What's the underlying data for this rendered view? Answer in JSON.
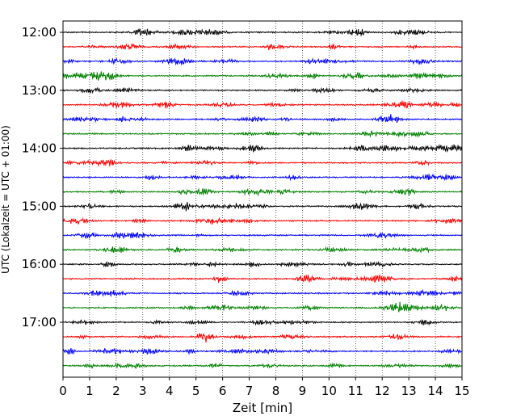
{
  "chart_data": {
    "type": "line",
    "title": "",
    "xlabel": "Zeit  [min]",
    "ylabel": "UTC (Lokalzeit = UTC + 01:00)",
    "xlim": [
      0,
      15
    ],
    "x_ticks": [
      "0",
      "1",
      "2",
      "3",
      "4",
      "5",
      "6",
      "7",
      "8",
      "9",
      "10",
      "11",
      "12",
      "13",
      "14",
      "15"
    ],
    "y_ticks": [
      "12:00",
      "13:00",
      "14:00",
      "15:00",
      "16:00",
      "17:00"
    ],
    "grid": "vertical dotted",
    "trace_colors": [
      "#000000",
      "#ff0000",
      "#0000ff",
      "#008000"
    ],
    "traces": [
      {
        "start": "12:00",
        "color": "#000000"
      },
      {
        "start": "12:15",
        "color": "#ff0000"
      },
      {
        "start": "12:30",
        "color": "#0000ff"
      },
      {
        "start": "12:45",
        "color": "#008000"
      },
      {
        "start": "13:00",
        "color": "#000000"
      },
      {
        "start": "13:15",
        "color": "#ff0000"
      },
      {
        "start": "13:30",
        "color": "#0000ff"
      },
      {
        "start": "13:45",
        "color": "#008000"
      },
      {
        "start": "14:00",
        "color": "#000000"
      },
      {
        "start": "14:15",
        "color": "#ff0000"
      },
      {
        "start": "14:30",
        "color": "#0000ff"
      },
      {
        "start": "14:45",
        "color": "#008000"
      },
      {
        "start": "15:00",
        "color": "#000000"
      },
      {
        "start": "15:15",
        "color": "#ff0000"
      },
      {
        "start": "15:30",
        "color": "#0000ff"
      },
      {
        "start": "15:45",
        "color": "#008000"
      },
      {
        "start": "16:00",
        "color": "#000000"
      },
      {
        "start": "16:15",
        "color": "#ff0000"
      },
      {
        "start": "16:30",
        "color": "#0000ff"
      },
      {
        "start": "16:45",
        "color": "#008000"
      },
      {
        "start": "17:00",
        "color": "#000000"
      },
      {
        "start": "17:15",
        "color": "#ff0000"
      },
      {
        "start": "17:30",
        "color": "#0000ff"
      },
      {
        "start": "17:45",
        "color": "#008000"
      }
    ]
  }
}
